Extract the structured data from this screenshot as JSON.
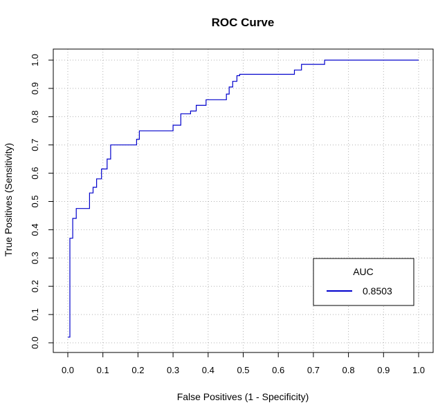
{
  "chart_data": {
    "type": "line",
    "title": "ROC Curve",
    "xlabel": "False Positives (1 - Specificity)",
    "ylabel": "True Positives (Sensitivity)",
    "xlim": [
      0,
      1
    ],
    "ylim": [
      0,
      1
    ],
    "xticks": [
      "0.0",
      "0.1",
      "0.2",
      "0.3",
      "0.4",
      "0.5",
      "0.6",
      "0.7",
      "0.8",
      "0.9",
      "1.0"
    ],
    "yticks": [
      "0.0",
      "0.1",
      "0.2",
      "0.3",
      "0.4",
      "0.5",
      "0.6",
      "0.7",
      "0.8",
      "0.9",
      "1.0"
    ],
    "grid": true,
    "legend": {
      "title": "AUC",
      "position": "bottom-right",
      "entries": [
        "0.8503"
      ]
    },
    "series": [
      {
        "color": "#0000cc",
        "line_style": "step",
        "x": [
          0.0,
          0.006,
          0.006,
          0.014,
          0.014,
          0.024,
          0.024,
          0.062,
          0.062,
          0.072,
          0.072,
          0.082,
          0.082,
          0.096,
          0.096,
          0.112,
          0.112,
          0.122,
          0.122,
          0.196,
          0.196,
          0.204,
          0.204,
          0.3,
          0.3,
          0.322,
          0.322,
          0.35,
          0.35,
          0.366,
          0.366,
          0.394,
          0.394,
          0.452,
          0.452,
          0.46,
          0.46,
          0.47,
          0.47,
          0.482,
          0.482,
          0.49,
          0.49,
          0.646,
          0.646,
          0.666,
          0.666,
          0.732,
          0.732,
          1.0
        ],
        "y": [
          0.02,
          0.02,
          0.37,
          0.37,
          0.44,
          0.44,
          0.475,
          0.475,
          0.53,
          0.53,
          0.55,
          0.55,
          0.58,
          0.58,
          0.615,
          0.615,
          0.65,
          0.65,
          0.7,
          0.7,
          0.72,
          0.72,
          0.75,
          0.75,
          0.77,
          0.77,
          0.81,
          0.81,
          0.82,
          0.82,
          0.84,
          0.84,
          0.86,
          0.86,
          0.88,
          0.88,
          0.905,
          0.905,
          0.925,
          0.925,
          0.945,
          0.945,
          0.95,
          0.95,
          0.965,
          0.965,
          0.985,
          0.985,
          1.0,
          1.0
        ]
      }
    ]
  }
}
